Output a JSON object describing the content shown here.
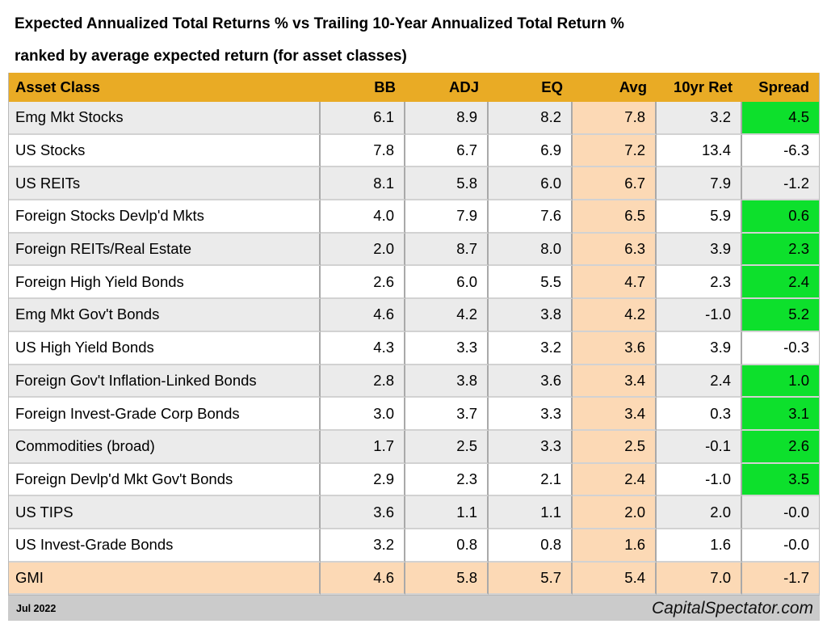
{
  "title": {
    "line1": "Expected Annualized Total Returns % vs Trailing 10-Year Annualized Total Return %",
    "line2": "ranked by average expected return (for asset classes)"
  },
  "footer": {
    "date": "Jul 2022",
    "site": "CapitalSpectator.com"
  },
  "colors": {
    "header_bg": "#E9AB25",
    "avg_column_bg": "#FCD9B5",
    "positive_spread_bg": "#0DE02C",
    "alt_row_bg": "#EBEBEB",
    "footer_bg": "#CBCBCB"
  },
  "chart_data": {
    "type": "table",
    "title": "Expected Annualized Total Returns % vs Trailing 10-Year Annualized Total Return %",
    "subtitle": "ranked by average expected return (for asset classes)",
    "columns": [
      "Asset Class",
      "BB",
      "ADJ",
      "EQ",
      "Avg",
      "10yr Ret",
      "Spread"
    ],
    "rows": [
      {
        "asset_class": "Emg Mkt Stocks",
        "values": [
          "6.1",
          "8.9",
          "8.2",
          "7.8",
          "3.2",
          "4.5"
        ],
        "spread_green": true,
        "row_peach": false
      },
      {
        "asset_class": "US Stocks",
        "values": [
          "7.8",
          "6.7",
          "6.9",
          "7.2",
          "13.4",
          "-6.3"
        ],
        "spread_green": false,
        "row_peach": false
      },
      {
        "asset_class": "US REITs",
        "values": [
          "8.1",
          "5.8",
          "6.0",
          "6.7",
          "7.9",
          "-1.2"
        ],
        "spread_green": false,
        "row_peach": false
      },
      {
        "asset_class": "Foreign Stocks Devlp'd Mkts",
        "values": [
          "4.0",
          "7.9",
          "7.6",
          "6.5",
          "5.9",
          "0.6"
        ],
        "spread_green": true,
        "row_peach": false
      },
      {
        "asset_class": "Foreign REITs/Real Estate",
        "values": [
          "2.0",
          "8.7",
          "8.0",
          "6.3",
          "3.9",
          "2.3"
        ],
        "spread_green": true,
        "row_peach": false
      },
      {
        "asset_class": "Foreign High Yield Bonds",
        "values": [
          "2.6",
          "6.0",
          "5.5",
          "4.7",
          "2.3",
          "2.4"
        ],
        "spread_green": true,
        "row_peach": false
      },
      {
        "asset_class": "Emg Mkt Gov't Bonds",
        "values": [
          "4.6",
          "4.2",
          "3.8",
          "4.2",
          "-1.0",
          "5.2"
        ],
        "spread_green": true,
        "row_peach": false
      },
      {
        "asset_class": "US High Yield Bonds",
        "values": [
          "4.3",
          "3.3",
          "3.2",
          "3.6",
          "3.9",
          "-0.3"
        ],
        "spread_green": false,
        "row_peach": false
      },
      {
        "asset_class": "Foreign Gov't Inflation-Linked Bonds",
        "values": [
          "2.8",
          "3.8",
          "3.6",
          "3.4",
          "2.4",
          "1.0"
        ],
        "spread_green": true,
        "row_peach": false
      },
      {
        "asset_class": "Foreign Invest-Grade Corp Bonds",
        "values": [
          "3.0",
          "3.7",
          "3.3",
          "3.4",
          "0.3",
          "3.1"
        ],
        "spread_green": true,
        "row_peach": false
      },
      {
        "asset_class": "Commodities (broad)",
        "values": [
          "1.7",
          "2.5",
          "3.3",
          "2.5",
          "-0.1",
          "2.6"
        ],
        "spread_green": true,
        "row_peach": false
      },
      {
        "asset_class": "Foreign Devlp'd Mkt Gov't Bonds",
        "values": [
          "2.9",
          "2.3",
          "2.1",
          "2.4",
          "-1.0",
          "3.5"
        ],
        "spread_green": true,
        "row_peach": false
      },
      {
        "asset_class": "US TIPS",
        "values": [
          "3.6",
          "1.1",
          "1.1",
          "2.0",
          "2.0",
          "-0.0"
        ],
        "spread_green": false,
        "row_peach": false
      },
      {
        "asset_class": "US Invest-Grade Bonds",
        "values": [
          "3.2",
          "0.8",
          "0.8",
          "1.6",
          "1.6",
          "-0.0"
        ],
        "spread_green": false,
        "row_peach": false
      },
      {
        "asset_class": "GMI",
        "values": [
          "4.6",
          "5.8",
          "5.7",
          "5.4",
          "7.0",
          "-1.7"
        ],
        "spread_green": false,
        "row_peach": true
      }
    ],
    "layout_hints": {
      "avg_column_highlight": "peach",
      "positive_spread_highlight": "green",
      "summary_row_highlight": "peach",
      "alternating_row_stripes": true
    }
  }
}
